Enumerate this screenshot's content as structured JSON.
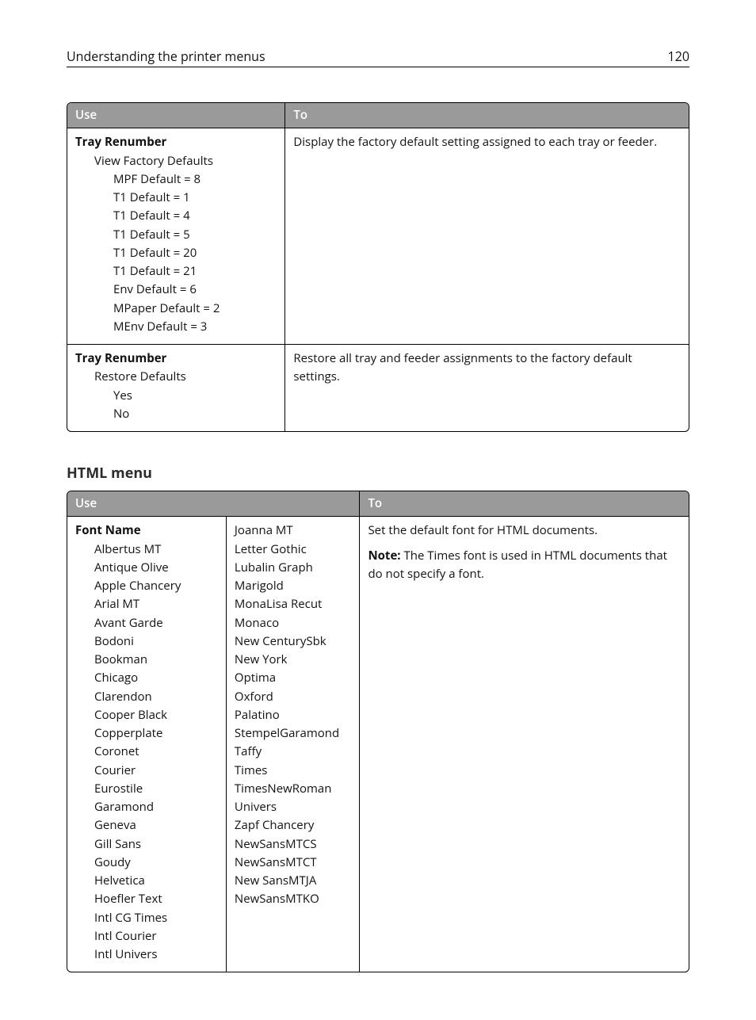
{
  "header": {
    "title": "Understanding the printer menus",
    "page_number": "120"
  },
  "table1": {
    "headers": {
      "use": "Use",
      "to": "To"
    },
    "rows": [
      {
        "title": "Tray Renumber",
        "sub": "View Factory Defaults",
        "items": [
          "MPF Default = 8",
          "T1 Default = 1",
          "T1 Default = 4",
          "T1 Default = 5",
          "T1 Default = 20",
          "T1 Default = 21",
          "Env Default = 6",
          "MPaper Default = 2",
          "MEnv Default = 3"
        ],
        "to": "Display the factory default setting assigned to each tray or feeder."
      },
      {
        "title": "Tray Renumber",
        "sub": "Restore Defaults",
        "items": [
          "Yes",
          "No"
        ],
        "to": "Restore all tray and feeder assignments to the factory default settings."
      }
    ]
  },
  "section_heading": "HTML menu",
  "table2": {
    "headers": {
      "use": "Use",
      "to": "To"
    },
    "row": {
      "title": "Font Name",
      "fonts_col_a": [
        "Albertus MT",
        "Antique Olive",
        "Apple Chancery",
        "Arial MT",
        "Avant Garde",
        "Bodoni",
        "Bookman",
        "Chicago",
        "Clarendon",
        "Cooper Black",
        "Copperplate",
        "Coronet",
        "Courier",
        "Eurostile",
        "Garamond",
        "Geneva",
        "Gill Sans",
        "Goudy",
        "Helvetica",
        "Hoefler Text",
        "Intl CG Times",
        "Intl Courier",
        "Intl Univers"
      ],
      "fonts_col_b": [
        "Joanna MT",
        "Letter Gothic",
        "Lubalin Graph",
        "Marigold",
        "MonaLisa Recut",
        "Monaco",
        "New CenturySbk",
        "New York",
        "Optima",
        "Oxford",
        "Palatino",
        "StempelGaramond",
        "Taffy",
        "Times",
        "TimesNewRoman",
        "Univers",
        "Zapf Chancery",
        "NewSansMTCS",
        "NewSansMTCT",
        "New SansMTJA",
        "NewSansMTKO"
      ],
      "to_line1": "Set the default font for HTML documents.",
      "note_label": "Note:",
      "note_text": " The Times font is used in HTML documents that do not specify a font."
    }
  }
}
